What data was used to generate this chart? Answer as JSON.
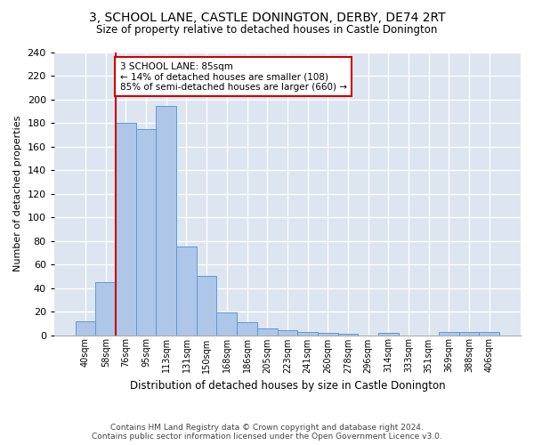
{
  "title1": "3, SCHOOL LANE, CASTLE DONINGTON, DERBY, DE74 2RT",
  "title2": "Size of property relative to detached houses in Castle Donington",
  "xlabel": "Distribution of detached houses by size in Castle Donington",
  "ylabel": "Number of detached properties",
  "categories": [
    "40sqm",
    "58sqm",
    "76sqm",
    "95sqm",
    "113sqm",
    "131sqm",
    "150sqm",
    "168sqm",
    "186sqm",
    "205sqm",
    "223sqm",
    "241sqm",
    "260sqm",
    "278sqm",
    "296sqm",
    "314sqm",
    "333sqm",
    "351sqm",
    "369sqm",
    "388sqm",
    "406sqm"
  ],
  "values": [
    12,
    45,
    180,
    175,
    195,
    75,
    50,
    19,
    11,
    6,
    4,
    3,
    2,
    1,
    0,
    2,
    0,
    0,
    3,
    3,
    3
  ],
  "bar_color": "#aec6e8",
  "bar_edge_color": "#5b9bd5",
  "red_line_index": 2,
  "annotation_text": "3 SCHOOL LANE: 85sqm\n← 14% of detached houses are smaller (108)\n85% of semi-detached houses are larger (660) →",
  "annotation_box_color": "#ffffff",
  "annotation_box_edge_color": "#cc0000",
  "red_line_color": "#cc0000",
  "ylim": [
    0,
    240
  ],
  "yticks": [
    0,
    20,
    40,
    60,
    80,
    100,
    120,
    140,
    160,
    180,
    200,
    220,
    240
  ],
  "bg_color": "#dde6f0",
  "grid_color": "#ffffff",
  "fig_bg_color": "#ffffff",
  "footer1": "Contains HM Land Registry data © Crown copyright and database right 2024.",
  "footer2": "Contains public sector information licensed under the Open Government Licence v3.0."
}
